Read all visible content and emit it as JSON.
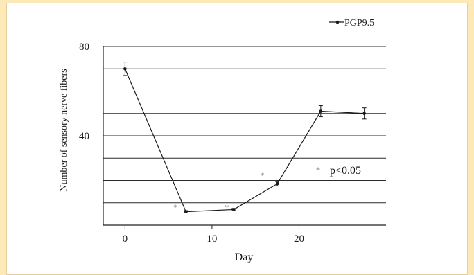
{
  "chart_data": {
    "type": "line",
    "ylabel": "Number of sensory nerve fibers",
    "xlabel": "Day",
    "x_ticks": [
      0,
      10,
      20
    ],
    "y_ticks": [
      40,
      80
    ],
    "xlim": [
      -2.5,
      30
    ],
    "ylim": [
      0,
      80
    ],
    "y_gridlines": [
      10,
      20,
      30,
      40,
      50,
      60,
      70,
      80
    ],
    "grid": true,
    "legend_position": "top-right",
    "series": [
      {
        "name": "PGP9.5",
        "color": "#1a1a1a",
        "points": [
          {
            "x": 0,
            "y": 70,
            "err": 3
          },
          {
            "x": 7,
            "y": 6,
            "err": 0.5
          },
          {
            "x": 12.5,
            "y": 7,
            "err": 0.5
          },
          {
            "x": 17.5,
            "y": 18.5,
            "err": 1
          },
          {
            "x": 22.5,
            "y": 51,
            "err": 2.5
          },
          {
            "x": 27.5,
            "y": 50,
            "err": 2.5
          }
        ]
      }
    ],
    "significance_markers": [
      {
        "x": 5.8,
        "y": 8.3
      },
      {
        "x": 11.7,
        "y": 8.4
      },
      {
        "x": 15.8,
        "y": 22.6
      }
    ],
    "annotation": {
      "marker": "*",
      "text": "p<0.05"
    }
  }
}
